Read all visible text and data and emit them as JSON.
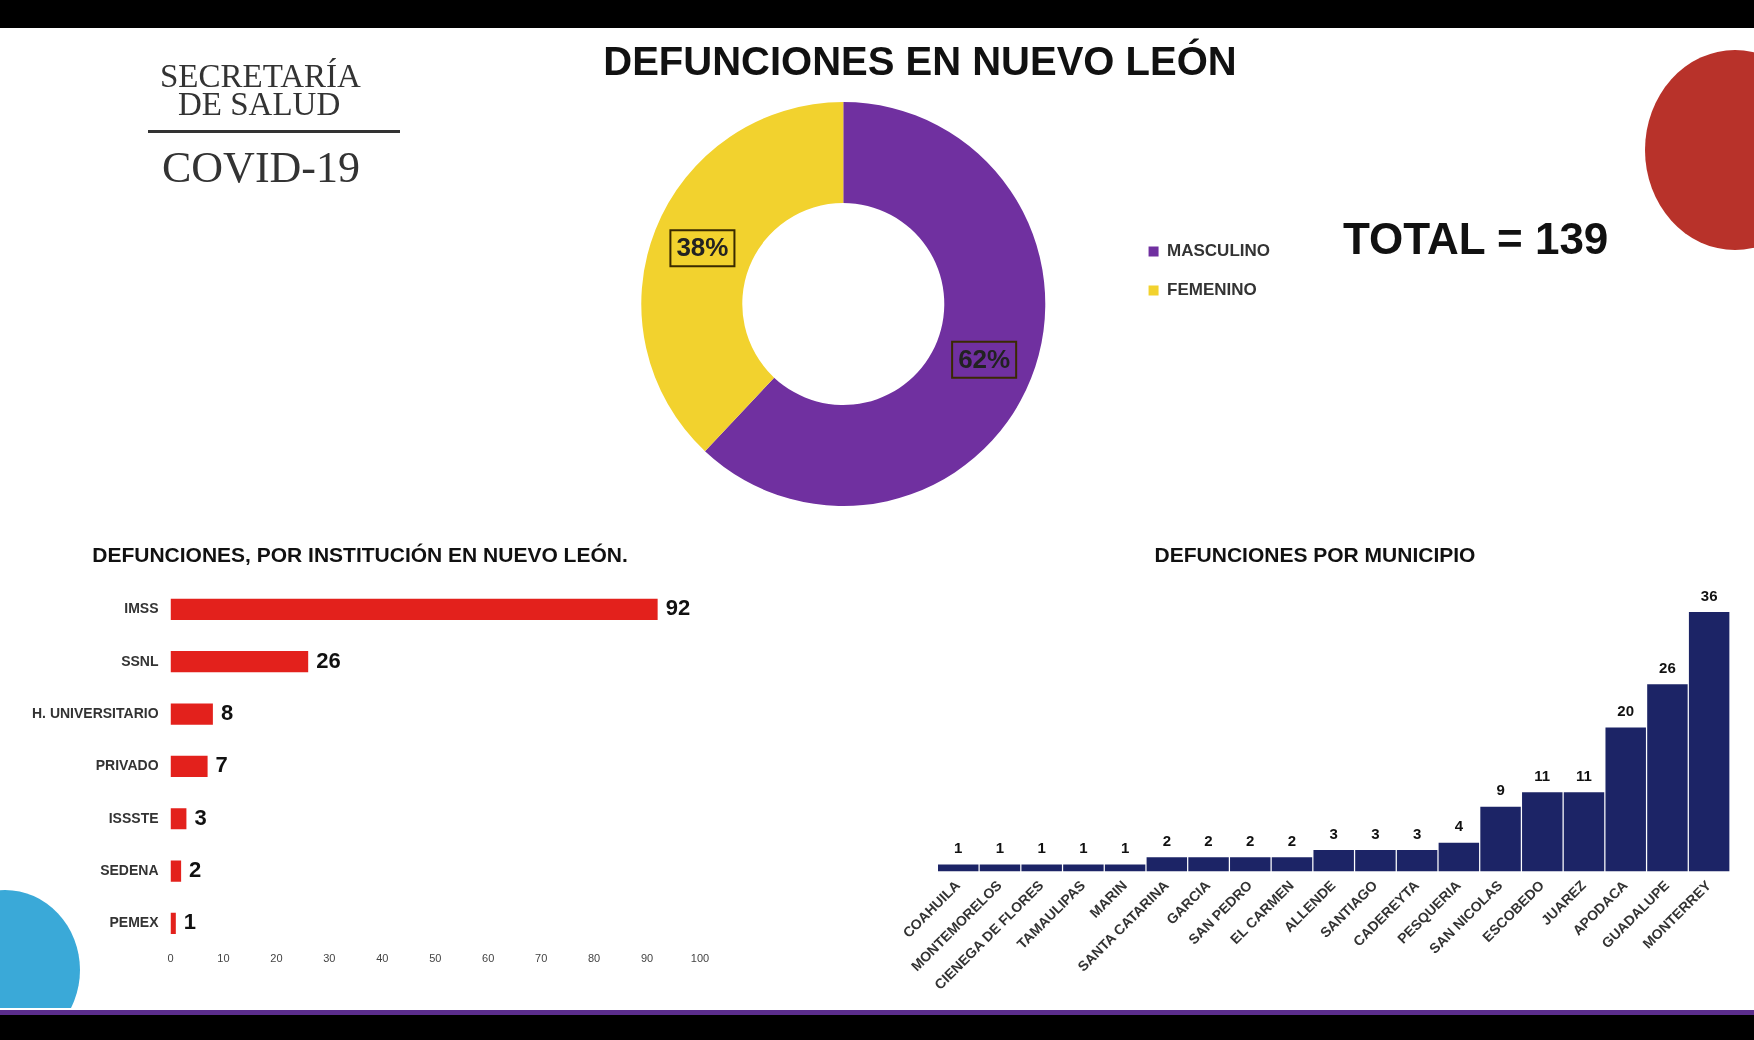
{
  "chart_data": [
    {
      "type": "donut",
      "title": "DEFUNCIONES EN NUEVO LEÓN",
      "categories": [
        "MASCULINO",
        "FEMENINO"
      ],
      "values": [
        62,
        38
      ],
      "colors": [
        "#7030a0",
        "#f2d22e"
      ],
      "value_labels": [
        "62%",
        "38%"
      ],
      "legend": "right",
      "annotations": [
        "SECRETARÍA",
        "DE SALUD",
        "COVID-19",
        "TOTAL = 139"
      ]
    },
    {
      "type": "bar",
      "orientation": "horizontal",
      "title": "DEFUNCIONES, POR INSTITUCIÓN EN NUEVO LEÓN.",
      "categories": [
        "IMSS",
        "SSNL",
        "H. UNIVERSITARIO",
        "PRIVADO",
        "ISSSTE",
        "SEDENA",
        "PEMEX"
      ],
      "values": [
        92,
        26,
        8,
        7,
        3,
        2,
        1
      ],
      "color": "#e3211c",
      "xlim": [
        0,
        100
      ],
      "xticks": [
        0,
        10,
        20,
        30,
        40,
        50,
        60,
        70,
        80,
        90,
        100
      ],
      "data_labels": true,
      "grid": false,
      "legend": false
    },
    {
      "type": "bar",
      "title": "DEFUNCIONES POR MUNICIPIO",
      "categories": [
        "COAHUILA",
        "MONTEMORELOS",
        "CIENEGA DE FLORES",
        "TAMAULIPAS",
        "MARIN",
        "SANTA CATARINA",
        "GARCIA",
        "SAN PEDRO",
        "EL CARMEN",
        "ALLENDE",
        "SANTIAGO",
        "CADEREYTA",
        "PESQUERIA",
        "SAN NICOLAS",
        "ESCOBEDO",
        "JUAREZ",
        "APODACA",
        "GUADALUPE",
        "MONTERREY"
      ],
      "values": [
        1,
        1,
        1,
        1,
        1,
        2,
        2,
        2,
        2,
        3,
        3,
        3,
        4,
        9,
        11,
        11,
        20,
        26,
        36
      ],
      "color": "#1c2466",
      "data_labels": true,
      "tick_labels": "x",
      "grid": false,
      "legend": false
    }
  ]
}
